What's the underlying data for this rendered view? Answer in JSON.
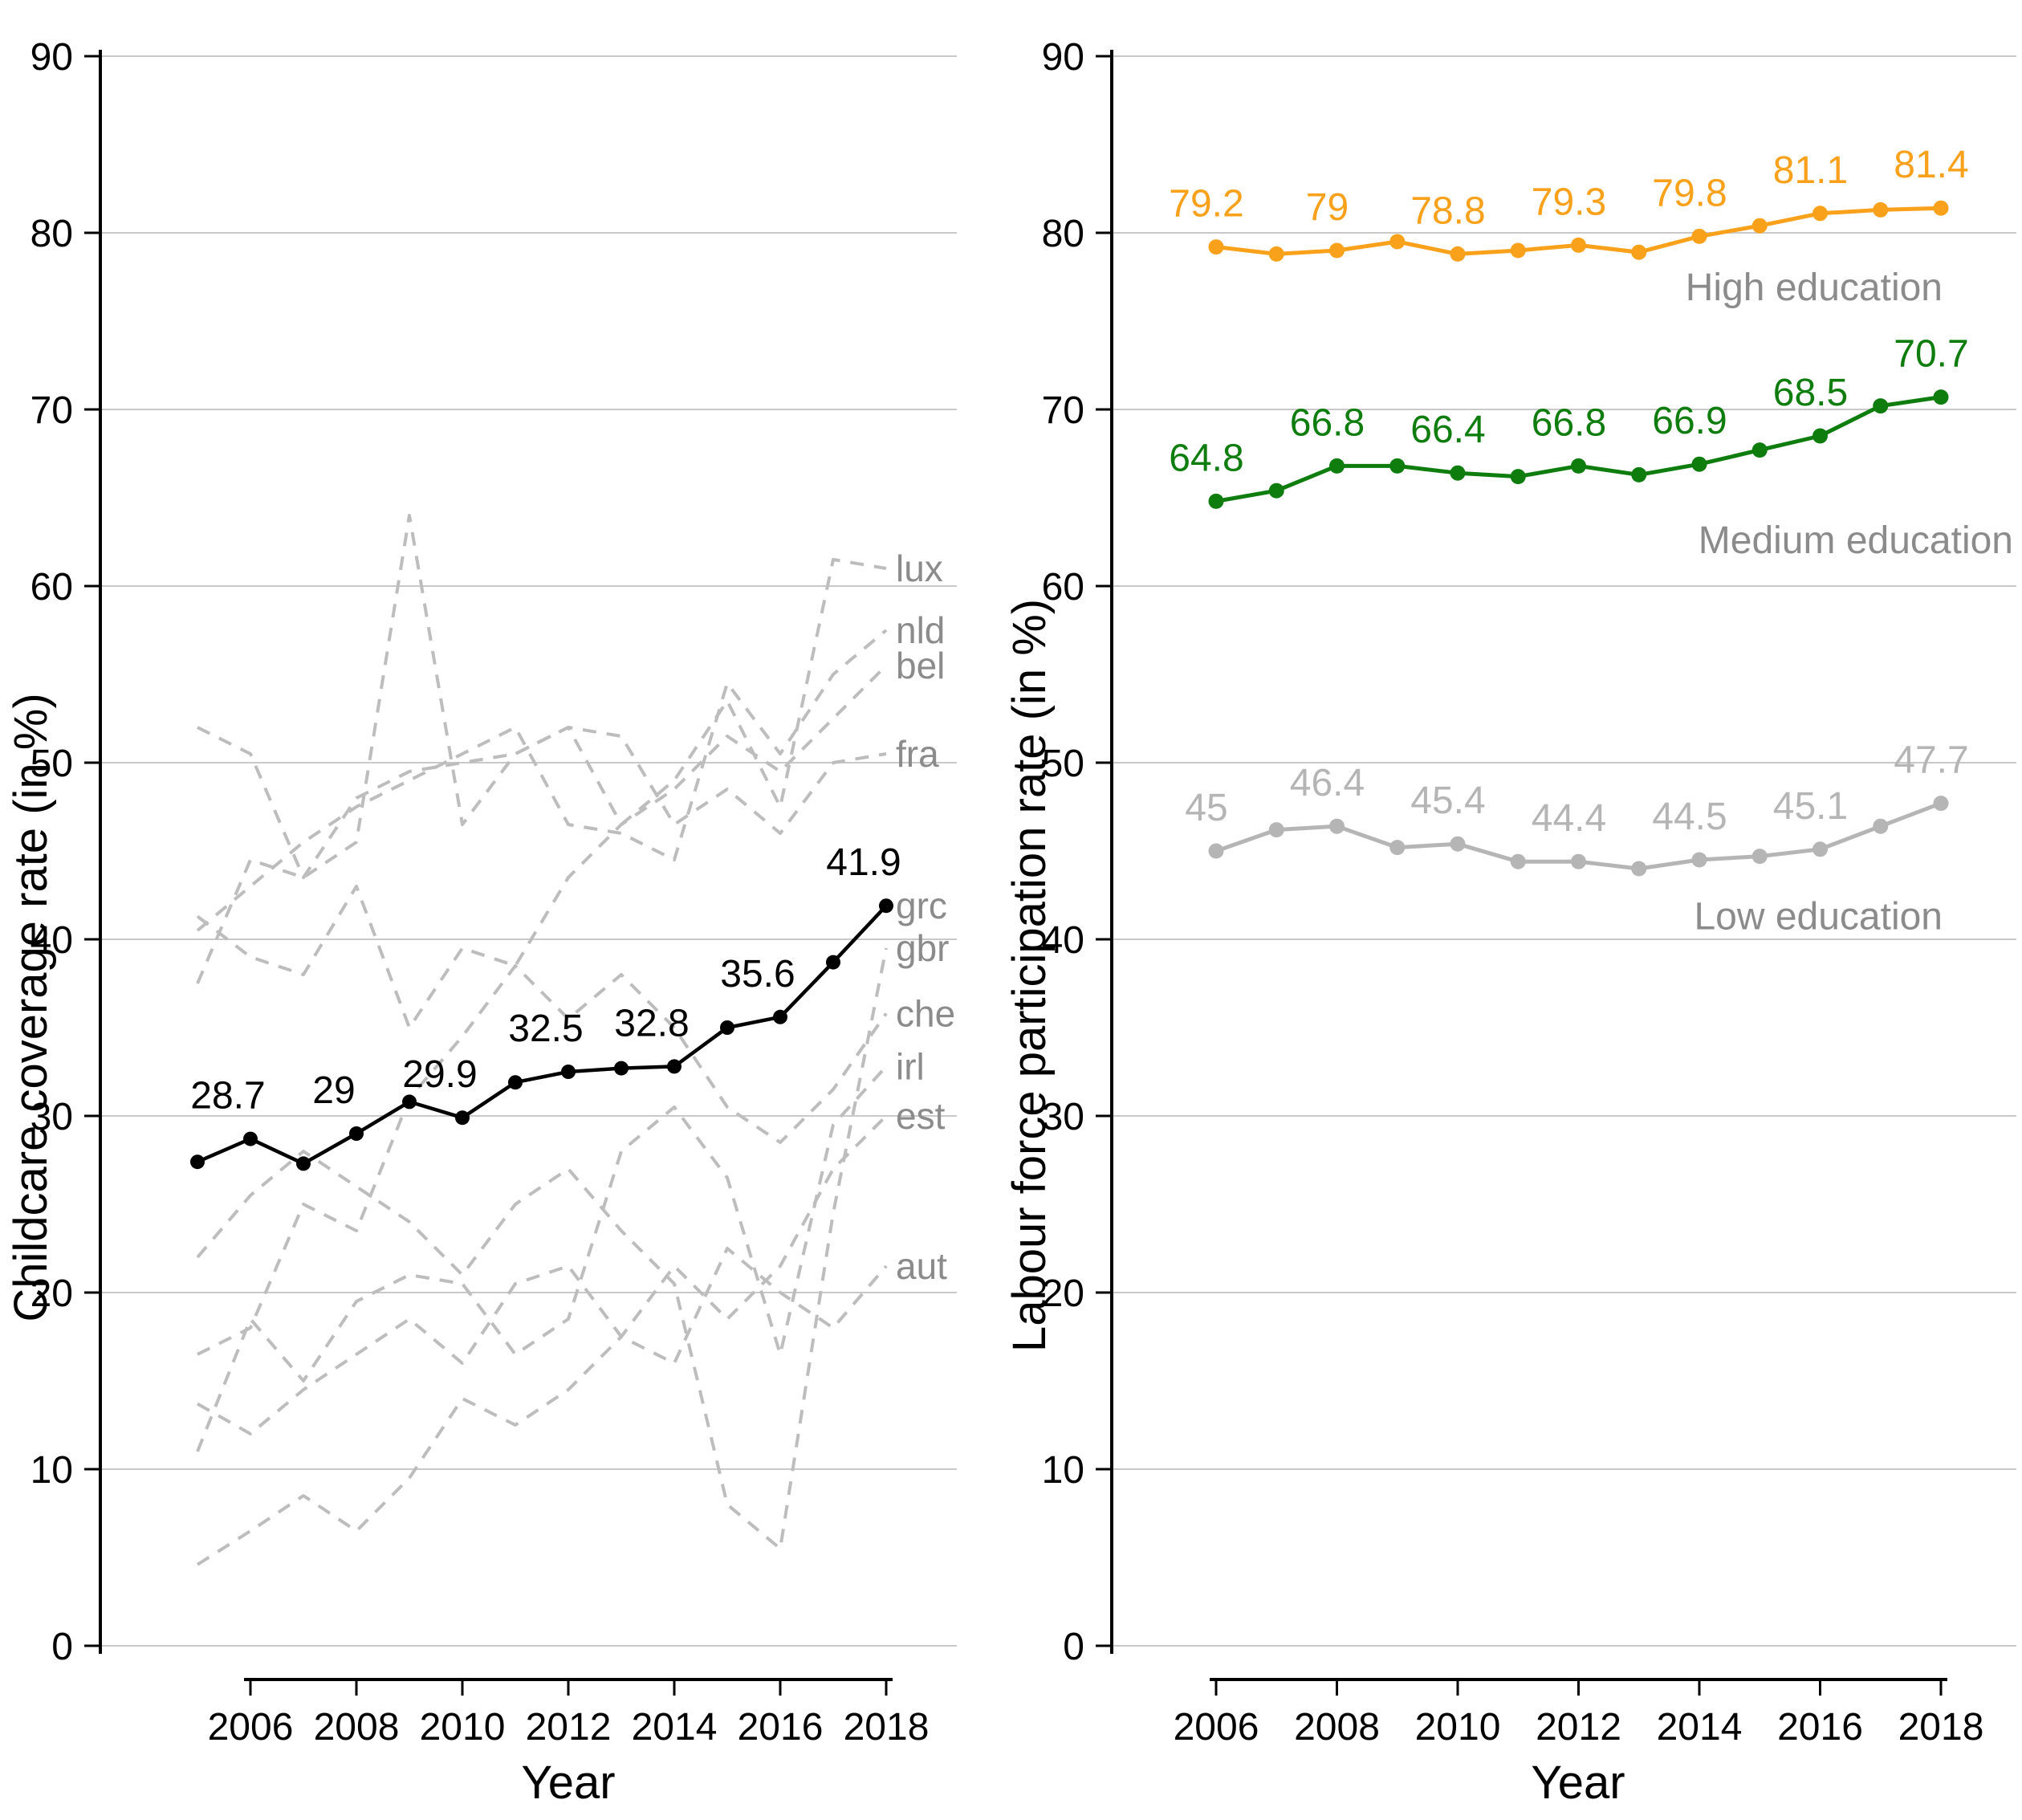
{
  "chart_data": [
    {
      "type": "line",
      "panel": "left",
      "y_axis_title": "Childcare coverage rate (in %)",
      "x_axis_title": "Year",
      "ylim": [
        0,
        90
      ],
      "yticks": [
        0,
        10,
        20,
        30,
        40,
        50,
        60,
        70,
        80,
        90
      ],
      "xticks": [
        2006,
        2008,
        2010,
        2012,
        2014,
        2016,
        2018
      ],
      "grid": "horizontal-major",
      "years": [
        2005,
        2006,
        2007,
        2008,
        2009,
        2010,
        2011,
        2012,
        2013,
        2014,
        2015,
        2016,
        2017,
        2018
      ],
      "highlight_series": {
        "id": "grc",
        "side_label": "grc",
        "color": "#000000",
        "values": [
          27.4,
          28.7,
          27.3,
          29.0,
          30.8,
          29.9,
          31.9,
          32.5,
          32.7,
          32.8,
          35.0,
          35.6,
          38.7,
          41.9
        ],
        "point_labels": [
          {
            "year": 2006,
            "text": "28.7"
          },
          {
            "year": 2008,
            "text": "29"
          },
          {
            "year": 2010,
            "text": "29.9"
          },
          {
            "year": 2012,
            "text": "32.5"
          },
          {
            "year": 2014,
            "text": "32.8"
          },
          {
            "year": 2016,
            "text": "35.6"
          },
          {
            "year": 2018,
            "text": "41.9"
          }
        ]
      },
      "background_series": [
        {
          "id": "lux",
          "side_label": "lux",
          "values": [
            37.5,
            44.5,
            43.5,
            45.5,
            64.0,
            46.5,
            50.5,
            52.0,
            46.5,
            49.0,
            53.5,
            47.5,
            61.5,
            61.0
          ]
        },
        {
          "id": "nld",
          "side_label": "nld",
          "values": [
            40.5,
            43.0,
            45.5,
            47.5,
            49.0,
            50.5,
            52.0,
            46.5,
            46.0,
            44.5,
            54.5,
            50.5,
            55.0,
            57.5
          ]
        },
        {
          "id": "bel",
          "side_label": "bel",
          "values": [
            41.3,
            39.0,
            38.0,
            43.0,
            35.0,
            39.5,
            38.5,
            43.5,
            46.5,
            48.5,
            51.5,
            49.5,
            52.5,
            55.5
          ]
        },
        {
          "id": "fra",
          "side_label": "fra",
          "values": [
            52.0,
            50.5,
            43.5,
            48.0,
            49.5,
            50.0,
            50.5,
            52.0,
            51.5,
            46.5,
            48.5,
            46.0,
            50.0,
            50.5
          ]
        },
        {
          "id": "gbr",
          "side_label": "gbr",
          "values": [
            22.0,
            25.5,
            28.0,
            26.0,
            24.0,
            21.0,
            25.0,
            27.0,
            23.5,
            20.5,
            8.0,
            5.5,
            24.5,
            39.5
          ]
        },
        {
          "id": "che",
          "side_label": "che",
          "values": [
            16.5,
            18.0,
            25.0,
            23.5,
            31.0,
            34.5,
            38.5,
            35.5,
            38.0,
            35.0,
            30.5,
            28.5,
            31.5,
            35.8
          ]
        },
        {
          "id": "irl",
          "side_label": "irl",
          "values": [
            11.0,
            18.5,
            15.0,
            19.5,
            21.0,
            20.5,
            16.5,
            18.5,
            28.0,
            30.5,
            26.5,
            16.5,
            29.5,
            32.8
          ]
        },
        {
          "id": "est",
          "side_label": "est",
          "values": [
            4.6,
            6.5,
            8.5,
            6.5,
            9.5,
            14.0,
            12.5,
            14.5,
            17.5,
            21.5,
            18.5,
            21.5,
            27.0,
            30.0
          ]
        },
        {
          "id": "aut",
          "side_label": "aut",
          "values": [
            13.7,
            12.0,
            14.5,
            16.5,
            18.5,
            16.0,
            20.5,
            21.5,
            17.5,
            16.0,
            22.5,
            20.0,
            18.0,
            21.5
          ]
        }
      ]
    },
    {
      "type": "line",
      "panel": "right",
      "y_axis_title": "Labour force participation rate (in %)",
      "x_axis_title": "Year",
      "ylim": [
        0,
        90
      ],
      "yticks": [
        0,
        10,
        20,
        30,
        40,
        50,
        60,
        70,
        80,
        90
      ],
      "xticks": [
        2006,
        2008,
        2010,
        2012,
        2014,
        2016,
        2018
      ],
      "grid": "horizontal-major",
      "years": [
        2006,
        2007,
        2008,
        2009,
        2010,
        2011,
        2012,
        2013,
        2014,
        2015,
        2016,
        2017,
        2018
      ],
      "series": [
        {
          "id": "high",
          "annotation": "High education",
          "color": "#F9A11B",
          "values": [
            79.2,
            78.8,
            79.0,
            79.5,
            78.8,
            79.0,
            79.3,
            78.9,
            79.8,
            80.4,
            81.1,
            81.3,
            81.4
          ],
          "point_labels": [
            {
              "year": 2006,
              "text": "79.2"
            },
            {
              "year": 2008,
              "text": "79"
            },
            {
              "year": 2010,
              "text": "78.8"
            },
            {
              "year": 2012,
              "text": "79.3"
            },
            {
              "year": 2014,
              "text": "79.8"
            },
            {
              "year": 2016,
              "text": "81.1"
            },
            {
              "year": 2018,
              "text": "81.4"
            }
          ]
        },
        {
          "id": "medium",
          "annotation": "Medium education",
          "color": "#0E7D0E",
          "values": [
            64.8,
            65.4,
            66.8,
            66.8,
            66.4,
            66.2,
            66.8,
            66.3,
            66.9,
            67.7,
            68.5,
            70.2,
            70.7
          ],
          "point_labels": [
            {
              "year": 2006,
              "text": "64.8"
            },
            {
              "year": 2008,
              "text": "66.8"
            },
            {
              "year": 2010,
              "text": "66.4"
            },
            {
              "year": 2012,
              "text": "66.8"
            },
            {
              "year": 2014,
              "text": "66.9"
            },
            {
              "year": 2016,
              "text": "68.5"
            },
            {
              "year": 2018,
              "text": "70.7"
            }
          ]
        },
        {
          "id": "low",
          "annotation": "Low education",
          "color": "#B5B5B5",
          "values": [
            45.0,
            46.2,
            46.4,
            45.2,
            45.4,
            44.4,
            44.4,
            44.0,
            44.5,
            44.7,
            45.1,
            46.4,
            47.7
          ],
          "point_labels": [
            {
              "year": 2006,
              "text": "45"
            },
            {
              "year": 2008,
              "text": "46.4"
            },
            {
              "year": 2010,
              "text": "45.4"
            },
            {
              "year": 2012,
              "text": "44.4"
            },
            {
              "year": 2014,
              "text": "44.5"
            },
            {
              "year": 2016,
              "text": "45.1"
            },
            {
              "year": 2018,
              "text": "47.7"
            }
          ]
        }
      ]
    }
  ],
  "colors": {
    "axis": "#000000",
    "gridline": "#C9C9C9",
    "background_line": "#BDBDBD",
    "side_label_gray": "#8B8B8B",
    "highlight": "#000000",
    "high_education": "#F9A11B",
    "medium_education": "#0E7D0E",
    "low_education": "#B5B5B5"
  }
}
